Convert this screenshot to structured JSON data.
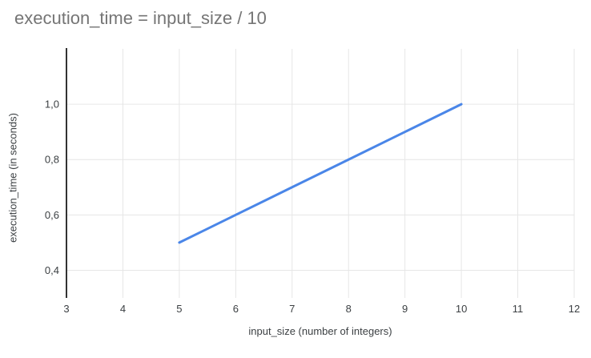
{
  "header": {
    "title": "execution_time = input_size / 10"
  },
  "chart_data": {
    "type": "line",
    "title": "execution_time = input_size / 10",
    "xlabel": "input_size (number of integers)",
    "ylabel": "execution_time (in seconds)",
    "series": [
      {
        "name": "execution_time",
        "x": [
          5,
          6,
          7,
          8,
          9,
          10
        ],
        "y": [
          0.5,
          0.6,
          0.7,
          0.8,
          0.9,
          1.0
        ],
        "color": "#4a86e8"
      }
    ],
    "xlim": [
      3,
      12
    ],
    "ylim": [
      0.3,
      1.2
    ],
    "x_ticks": [
      {
        "value": 3,
        "label": "3"
      },
      {
        "value": 4,
        "label": "4"
      },
      {
        "value": 5,
        "label": "5"
      },
      {
        "value": 6,
        "label": "6"
      },
      {
        "value": 7,
        "label": "7"
      },
      {
        "value": 8,
        "label": "8"
      },
      {
        "value": 9,
        "label": "9"
      },
      {
        "value": 10,
        "label": "10"
      },
      {
        "value": 11,
        "label": "11"
      },
      {
        "value": 12,
        "label": "12"
      }
    ],
    "y_ticks": [
      {
        "value": 0.4,
        "label": "0,4"
      },
      {
        "value": 0.6,
        "label": "0,6"
      },
      {
        "value": 0.8,
        "label": "0,8"
      },
      {
        "value": 1.0,
        "label": "1,0"
      }
    ],
    "grid": true,
    "legend": false,
    "colors": {
      "background": "#ffffff",
      "grid": "#e6e6e6",
      "axis": "#333333",
      "tick_label": "#3c4043",
      "axis_title": "#3c4043",
      "title": "#757575"
    }
  }
}
